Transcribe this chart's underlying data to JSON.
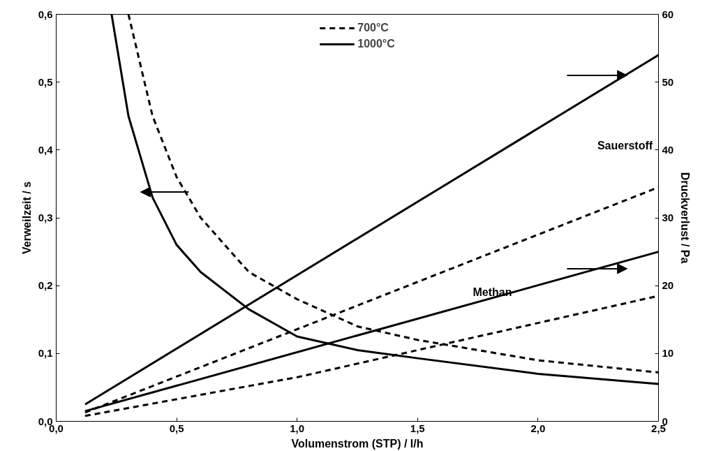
{
  "chart_data": {
    "type": "line",
    "xlabel": "Volumenstrom (STP) / l/h",
    "ylabel": "Verweilzeit / s",
    "y2label": "Druckverlust / Pa",
    "xlim": [
      0,
      2.5
    ],
    "ylim": [
      0,
      0.6
    ],
    "y2lim": [
      0,
      60
    ],
    "xticks": [
      {
        "value": 0,
        "label": "0,0"
      },
      {
        "value": 0.5,
        "label": "0,5"
      },
      {
        "value": 1,
        "label": "1,0"
      },
      {
        "value": 1.5,
        "label": "1,5"
      },
      {
        "value": 2,
        "label": "2,0"
      },
      {
        "value": 2.5,
        "label": "2,5"
      }
    ],
    "yticks": [
      {
        "value": 0,
        "label": "0,0"
      },
      {
        "value": 0.1,
        "label": "0,1"
      },
      {
        "value": 0.2,
        "label": "0,2"
      },
      {
        "value": 0.3,
        "label": "0,3"
      },
      {
        "value": 0.4,
        "label": "0,4"
      },
      {
        "value": 0.5,
        "label": "0,5"
      },
      {
        "value": 0.6,
        "label": "0,6"
      }
    ],
    "y2ticks": [
      0,
      10,
      20,
      30,
      40,
      50,
      60
    ],
    "grid": false,
    "legend": "top",
    "marker": "none",
    "series": [
      {
        "name": "700°C",
        "color": "#000000",
        "line_style": "dashed",
        "x": [
          0.3,
          0.4,
          0.5,
          0.6,
          0.8,
          1.0,
          1.25,
          1.5,
          2.0,
          2.5
        ],
        "values": [
          0.6,
          0.45,
          0.36,
          0.3,
          0.22,
          0.18,
          0.14,
          0.12,
          0.09,
          0.072
        ]
      },
      {
        "name": "1000°C",
        "color": "#000000",
        "line_style": "solid",
        "x": [
          0.23,
          0.3,
          0.4,
          0.5,
          0.6,
          0.8,
          1.0,
          1.25,
          1.5,
          2.0,
          2.5
        ],
        "values": [
          0.6,
          0.45,
          0.33,
          0.26,
          0.22,
          0.165,
          0.125,
          0.105,
          0.093,
          0.07,
          0.055
        ]
      },
      {
        "color": "#000000",
        "line_style": "solid",
        "axis": "y2",
        "x": [
          0.12,
          2.5
        ],
        "values": [
          2.5,
          54
        ]
      },
      {
        "color": "#000000",
        "line_style": "dashed",
        "axis": "y2",
        "x": [
          0.12,
          2.5
        ],
        "values": [
          1.3,
          34.5
        ]
      },
      {
        "color": "#000000",
        "line_style": "solid",
        "axis": "y2",
        "x": [
          0.12,
          2.5
        ],
        "values": [
          1.5,
          25
        ]
      },
      {
        "color": "#000000",
        "line_style": "dashed",
        "axis": "y2",
        "x": [
          0.12,
          1.0,
          2.5
        ],
        "values": [
          0.8,
          6.5,
          18.5
        ]
      }
    ],
    "annotations": [
      "Sauerstoff",
      "Methan"
    ]
  }
}
